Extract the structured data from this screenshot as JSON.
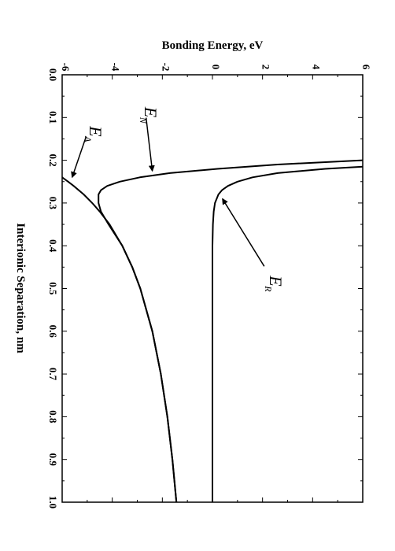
{
  "chart_data": {
    "type": "line",
    "orientation": "rotated-90-clockwise",
    "xlabel": "Interionic Separation, nm",
    "ylabel": "Bonding Energy, eV",
    "xlim": [
      0.0,
      1.0
    ],
    "ylim": [
      -6,
      6
    ],
    "x_ticks": [
      "0.0",
      "0.1",
      "0.2",
      "0.3",
      "0.4",
      "0.5",
      "0.6",
      "0.7",
      "0.8",
      "0.9",
      "1.0"
    ],
    "y_ticks": [
      "-6",
      "-4",
      "-2",
      "0",
      "2",
      "4",
      "6"
    ],
    "series": [
      {
        "name": "E_N",
        "label_main": "E",
        "label_sub": "N",
        "x": [
          0.2,
          0.21,
          0.22,
          0.23,
          0.24,
          0.25,
          0.26,
          0.27,
          0.28,
          0.3,
          0.32,
          0.35,
          0.4,
          0.45,
          0.5,
          0.6,
          0.7,
          0.8,
          0.9,
          1.0
        ],
        "values": [
          6.0,
          2.6,
          0.2,
          -1.7,
          -2.9,
          -3.7,
          -4.2,
          -4.45,
          -4.55,
          -4.55,
          -4.45,
          -4.15,
          -3.6,
          -3.2,
          -2.88,
          -2.4,
          -2.06,
          -1.8,
          -1.6,
          -1.44
        ]
      },
      {
        "name": "E_A",
        "label_main": "E",
        "label_sub": "A",
        "x": [
          0.24,
          0.25,
          0.26,
          0.28,
          0.3,
          0.32,
          0.35,
          0.4,
          0.45,
          0.5,
          0.6,
          0.7,
          0.8,
          0.9,
          1.0
        ],
        "values": [
          -6.0,
          -5.76,
          -5.54,
          -5.14,
          -4.8,
          -4.5,
          -4.11,
          -3.6,
          -3.2,
          -2.88,
          -2.4,
          -2.06,
          -1.8,
          -1.6,
          -1.44
        ]
      },
      {
        "name": "E_R",
        "label_main": "E",
        "label_sub": "R",
        "x": [
          0.215,
          0.22,
          0.23,
          0.24,
          0.25,
          0.26,
          0.27,
          0.28,
          0.3,
          0.32,
          0.35,
          0.4,
          0.5,
          0.6,
          0.8,
          1.0
        ],
        "values": [
          6.0,
          4.5,
          2.6,
          1.6,
          1.0,
          0.62,
          0.38,
          0.24,
          0.1,
          0.05,
          0.02,
          0.0,
          0.0,
          0.0,
          0.0,
          0.0
        ]
      }
    ],
    "annotations": [
      {
        "series": "E_N",
        "text_main": "E",
        "text_sub": "N",
        "text_x": 0.075,
        "text_y": -2.7,
        "arrow_x": 0.225,
        "arrow_y": -2.4
      },
      {
        "series": "E_A",
        "text_main": "E",
        "text_sub": "A",
        "text_x": 0.12,
        "text_y": -4.9,
        "arrow_x": 0.24,
        "arrow_y": -5.6
      },
      {
        "series": "E_R",
        "text_main": "E",
        "text_sub": "R",
        "text_x": 0.47,
        "text_y": 2.3,
        "arrow_x": 0.29,
        "arrow_y": 0.4
      }
    ],
    "grid": false,
    "legend": "none"
  }
}
